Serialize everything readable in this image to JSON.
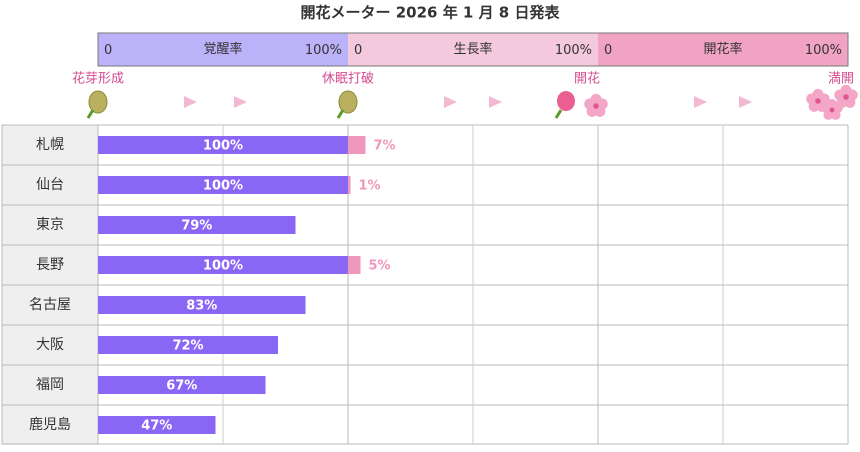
{
  "chart_data": {
    "type": "bar",
    "title": "開花メーター 2026 年 1 月 8 日発表",
    "categories": [
      "札幌",
      "仙台",
      "東京",
      "長野",
      "名古屋",
      "大阪",
      "福岡",
      "鹿児島"
    ],
    "xlim": [
      0,
      100
    ],
    "xticks": [
      0,
      {
        "value": 100,
        "label": "100%"
      }
    ],
    "annotations": [
      "花芽形成",
      "休眠打破",
      "開花",
      "満開"
    ],
    "series": [
      {
        "name": "覚醒率",
        "color": "#8a66f5",
        "header_color": "#bcb2fa",
        "values": [
          100,
          100,
          79,
          100,
          83,
          72,
          67,
          47
        ],
        "value_labels": [
          "100%",
          "100%",
          "79%",
          "100%",
          "83%",
          "72%",
          "67%",
          "47%"
        ]
      },
      {
        "name": "生長率",
        "color": "#f097bd",
        "header_color": "#f5c9dd",
        "values": [
          7,
          1,
          null,
          5,
          null,
          null,
          null,
          null
        ],
        "value_labels": [
          "7%",
          "1%",
          null,
          "5%",
          null,
          null,
          null,
          null
        ]
      },
      {
        "name": "開花率",
        "color": "#ee7fae",
        "header_color": "#f1a3c4",
        "values": [
          null,
          null,
          null,
          null,
          null,
          null,
          null,
          null
        ],
        "value_labels": [
          null,
          null,
          null,
          null,
          null,
          null,
          null,
          null
        ]
      }
    ]
  }
}
